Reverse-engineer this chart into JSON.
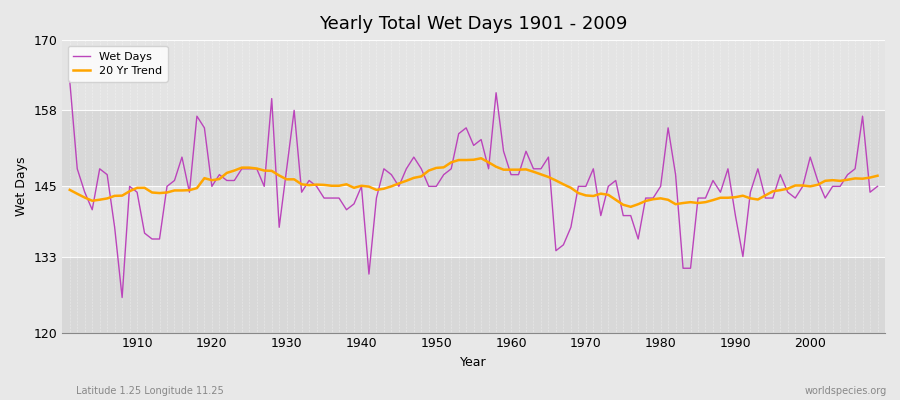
{
  "title": "Yearly Total Wet Days 1901 - 2009",
  "xlabel": "Year",
  "ylabel": "Wet Days",
  "subtitle": "Latitude 1.25 Longitude 11.25",
  "watermark": "worldspecies.org",
  "ylim": [
    120,
    170
  ],
  "yticks": [
    120,
    133,
    145,
    158,
    170
  ],
  "line_color": "#bb44bb",
  "trend_color": "#ffa500",
  "bg_color": "#e8e8e8",
  "plot_bg_main": "#d8d8d8",
  "plot_bg_band": "#e4e4e4",
  "years": [
    1901,
    1902,
    1903,
    1904,
    1905,
    1906,
    1907,
    1908,
    1909,
    1910,
    1911,
    1912,
    1913,
    1914,
    1915,
    1916,
    1917,
    1918,
    1919,
    1920,
    1921,
    1922,
    1923,
    1924,
    1925,
    1926,
    1927,
    1928,
    1929,
    1930,
    1931,
    1932,
    1933,
    1934,
    1935,
    1936,
    1937,
    1938,
    1939,
    1940,
    1941,
    1942,
    1943,
    1944,
    1945,
    1946,
    1947,
    1948,
    1949,
    1950,
    1951,
    1952,
    1953,
    1954,
    1955,
    1956,
    1957,
    1958,
    1959,
    1960,
    1961,
    1962,
    1963,
    1964,
    1965,
    1966,
    1967,
    1968,
    1969,
    1970,
    1971,
    1972,
    1973,
    1974,
    1975,
    1976,
    1977,
    1978,
    1979,
    1980,
    1981,
    1982,
    1983,
    1984,
    1985,
    1986,
    1987,
    1988,
    1989,
    1990,
    1991,
    1992,
    1993,
    1994,
    1995,
    1996,
    1997,
    1998,
    1999,
    2000,
    2001,
    2002,
    2003,
    2004,
    2005,
    2006,
    2007,
    2008,
    2009
  ],
  "wet_days": [
    163,
    148,
    144,
    141,
    148,
    147,
    138,
    126,
    145,
    144,
    137,
    136,
    136,
    145,
    146,
    150,
    144,
    157,
    155,
    145,
    147,
    146,
    146,
    148,
    148,
    148,
    145,
    160,
    138,
    148,
    158,
    144,
    146,
    145,
    143,
    143,
    143,
    141,
    142,
    145,
    130,
    143,
    148,
    147,
    145,
    148,
    150,
    148,
    145,
    145,
    147,
    148,
    154,
    155,
    152,
    153,
    148,
    161,
    151,
    147,
    147,
    151,
    148,
    148,
    150,
    134,
    135,
    138,
    145,
    145,
    148,
    140,
    145,
    146,
    140,
    140,
    136,
    143,
    143,
    145,
    155,
    147,
    131,
    131,
    143,
    143,
    146,
    144,
    148,
    140,
    133,
    144,
    148,
    143,
    143,
    147,
    144,
    143,
    145,
    150,
    146,
    143,
    145,
    145,
    147,
    148,
    157,
    144,
    145
  ]
}
